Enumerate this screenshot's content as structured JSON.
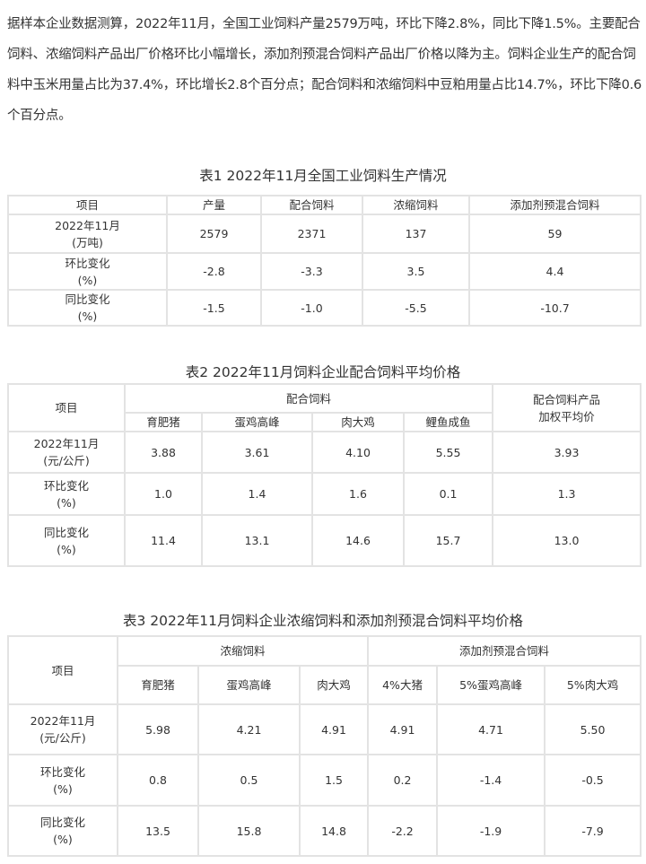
{
  "intro": "据样本企业数据测算，2022年11月，全国工业饲料产量2579万吨，环比下降2.8%，同比下降1.5%。主要配合饲料、浓缩饲料产品出厂价格环比小幅增长，添加剂预混合饲料产品出厂价格以降为主。饲料企业生产的配合饲料中玉米用量占比为37.4%，环比增长2.8个百分点；配合饲料和浓缩饲料中豆粕用量占比14.7%，环比下降0.6个百分点。",
  "table1": {
    "title": "表1  2022年11月全国工业饲料生产情况",
    "header": [
      "项目",
      "产量",
      "配合饲料",
      "浓缩饲料",
      "添加剂预混合饲料"
    ],
    "rows": [
      {
        "label": [
          "2022年11月",
          "(万吨)"
        ],
        "values": [
          "2579",
          "2371",
          "137",
          "59"
        ]
      },
      {
        "label": [
          "环比变化",
          "(%)"
        ],
        "values": [
          "-2.8",
          "-3.3",
          "3.5",
          "4.4"
        ]
      },
      {
        "label": [
          "同比变化",
          "(%)"
        ],
        "values": [
          "-1.5",
          "-1.0",
          "-5.5",
          "-10.7"
        ]
      }
    ]
  },
  "table2": {
    "title": "表2  2022年11月饲料企业配合饲料平均价格",
    "item_header": "项目",
    "group_header": "配合饲料",
    "weighted_header": [
      "配合饲料产品",
      "加权平均价"
    ],
    "subheaders": [
      "育肥猪",
      "蛋鸡高峰",
      "肉大鸡",
      "鲤鱼成鱼"
    ],
    "rows": [
      {
        "label": [
          "2022年11月",
          "(元/公斤)"
        ],
        "values": [
          "3.88",
          "3.61",
          "4.10",
          "5.55",
          "3.93"
        ]
      },
      {
        "label": [
          "环比变化",
          "(%)"
        ],
        "values": [
          "1.0",
          "1.4",
          "1.6",
          "0.1",
          "1.3"
        ]
      },
      {
        "label": [
          "同比变化",
          "(%)"
        ],
        "values": [
          "11.4",
          "13.1",
          "14.6",
          "15.7",
          "13.0"
        ]
      }
    ]
  },
  "table3": {
    "title": "表3  2022年11月饲料企业浓缩饲料和添加剂预混合饲料平均价格",
    "item_header": "项目",
    "group_headers": [
      "浓缩饲料",
      "添加剂预混合饲料"
    ],
    "subheaders": [
      "育肥猪",
      "蛋鸡高峰",
      "肉大鸡",
      "4%大猪",
      "5%蛋鸡高峰",
      "5%肉大鸡"
    ],
    "rows": [
      {
        "label": [
          "2022年11月",
          "(元/公斤)"
        ],
        "values": [
          "5.98",
          "4.21",
          "4.91",
          "4.91",
          "4.71",
          "5.50"
        ]
      },
      {
        "label": [
          "环比变化",
          "(%)"
        ],
        "values": [
          "0.8",
          "0.5",
          "1.5",
          "0.2",
          "-1.4",
          "-0.5"
        ]
      },
      {
        "label": [
          "同比变化",
          "(%)"
        ],
        "values": [
          "13.5",
          "15.8",
          "14.8",
          "-2.2",
          "-1.9",
          "-7.9"
        ]
      }
    ]
  }
}
